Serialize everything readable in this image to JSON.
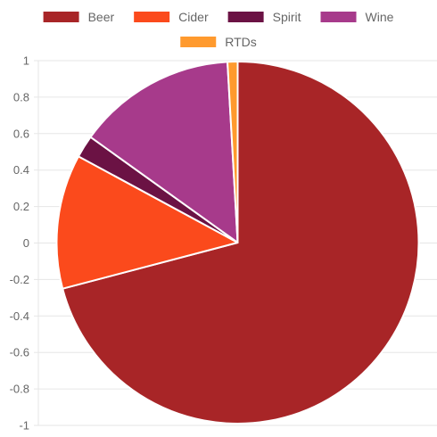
{
  "chart_data": {
    "type": "pie",
    "categories": [
      "Beer",
      "Cider",
      "Spirit",
      "Wine",
      "RTDs"
    ],
    "values": [
      70.9,
      12.0,
      2.0,
      14.2,
      0.9
    ],
    "colors": [
      "#a82527",
      "#fb4a1c",
      "#6b1244",
      "#a73a8b",
      "#ff9a2e"
    ],
    "legend_position": "top",
    "y_ticks": [
      "1",
      "0.8",
      "0.6",
      "0.4",
      "0.2",
      "0",
      "-0.2",
      "-0.4",
      "-0.6",
      "-0.8",
      "-1"
    ],
    "ylim": [
      -1,
      1
    ],
    "grid": true,
    "start_angle": "top",
    "direction": "clockwise"
  }
}
